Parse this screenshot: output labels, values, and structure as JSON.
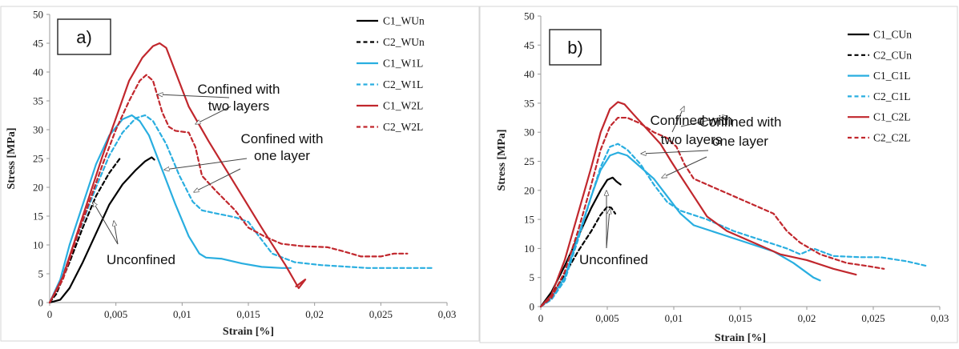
{
  "chart_data": [
    {
      "type": "line",
      "panel_label": "a)",
      "xlabel": "Strain [%]",
      "ylabel": "Stress [MPa]",
      "xlim": [
        0,
        0.03
      ],
      "ylim": [
        0,
        50
      ],
      "xticks": [
        "0",
        "0,005",
        "0,01",
        "0,015",
        "0,02",
        "0,025",
        "0,03"
      ],
      "yticks": [
        "0",
        "5",
        "10",
        "15",
        "20",
        "25",
        "30",
        "35",
        "40",
        "45",
        "50"
      ],
      "grid": false,
      "legend_position": "right",
      "series": [
        {
          "name": "C1_WUn",
          "color": "#000000",
          "dash": false,
          "points": [
            [
              0,
              0
            ],
            [
              0.0008,
              0.5
            ],
            [
              0.0015,
              2.5
            ],
            [
              0.0025,
              7
            ],
            [
              0.0035,
              12
            ],
            [
              0.0045,
              17
            ],
            [
              0.0055,
              20.5
            ],
            [
              0.0065,
              23
            ],
            [
              0.0072,
              24.5
            ],
            [
              0.0077,
              25.2
            ],
            [
              0.0079,
              24.8
            ]
          ]
        },
        {
          "name": "C2_WUn",
          "color": "#000000",
          "dash": true,
          "points": [
            [
              0,
              0
            ],
            [
              0.0005,
              1.5
            ],
            [
              0.0015,
              7
            ],
            [
              0.0025,
              13
            ],
            [
              0.0035,
              18.5
            ],
            [
              0.0045,
              22.5
            ],
            [
              0.0053,
              25
            ]
          ]
        },
        {
          "name": "C1_W1L",
          "color": "#29aee0",
          "dash": false,
          "points": [
            [
              0,
              0
            ],
            [
              0.0008,
              4
            ],
            [
              0.0015,
              10
            ],
            [
              0.0025,
              17
            ],
            [
              0.0035,
              24
            ],
            [
              0.0045,
              29
            ],
            [
              0.0055,
              31.8
            ],
            [
              0.0062,
              32.5
            ],
            [
              0.0068,
              31.5
            ],
            [
              0.0075,
              29
            ],
            [
              0.0085,
              23
            ],
            [
              0.0095,
              17
            ],
            [
              0.0105,
              11.5
            ],
            [
              0.0113,
              8.5
            ],
            [
              0.0118,
              7.8
            ],
            [
              0.013,
              7.6
            ],
            [
              0.0145,
              6.8
            ],
            [
              0.016,
              6.2
            ],
            [
              0.0175,
              6
            ],
            [
              0.0182,
              6
            ]
          ]
        },
        {
          "name": "C2_W1L",
          "color": "#29aee0",
          "dash": true,
          "points": [
            [
              0,
              0
            ],
            [
              0.0008,
              3.5
            ],
            [
              0.0015,
              8
            ],
            [
              0.0025,
              14
            ],
            [
              0.0035,
              20
            ],
            [
              0.0045,
              25.5
            ],
            [
              0.0055,
              29.5
            ],
            [
              0.0065,
              32
            ],
            [
              0.0072,
              32.5
            ],
            [
              0.0078,
              31.5
            ],
            [
              0.0088,
              27.5
            ],
            [
              0.0098,
              22
            ],
            [
              0.0108,
              17.5
            ],
            [
              0.0115,
              16
            ],
            [
              0.0125,
              15.5
            ],
            [
              0.014,
              14.8
            ],
            [
              0.015,
              14
            ],
            [
              0.0158,
              11.5
            ],
            [
              0.0168,
              8.5
            ],
            [
              0.0185,
              7
            ],
            [
              0.0205,
              6.5
            ],
            [
              0.024,
              6
            ],
            [
              0.029,
              6
            ]
          ]
        },
        {
          "name": "C1_W2L",
          "color": "#c1272d",
          "dash": false,
          "points": [
            [
              0,
              0
            ],
            [
              0.001,
              4.5
            ],
            [
              0.002,
              11.5
            ],
            [
              0.003,
              18.5
            ],
            [
              0.004,
              25.5
            ],
            [
              0.005,
              32
            ],
            [
              0.006,
              38.5
            ],
            [
              0.007,
              42.5
            ],
            [
              0.0078,
              44.5
            ],
            [
              0.0083,
              45
            ],
            [
              0.0088,
              44.2
            ],
            [
              0.0095,
              40
            ],
            [
              0.0105,
              34
            ],
            [
              0.012,
              28
            ],
            [
              0.014,
              20.5
            ],
            [
              0.016,
              13
            ],
            [
              0.0178,
              6.5
            ],
            [
              0.0188,
              2.5
            ],
            [
              0.0193,
              4
            ],
            [
              0.019,
              3.5
            ],
            [
              0.0186,
              2.8
            ]
          ]
        },
        {
          "name": "C2_W2L",
          "color": "#c1272d",
          "dash": true,
          "points": [
            [
              0,
              0
            ],
            [
              0.001,
              4
            ],
            [
              0.002,
              11
            ],
            [
              0.003,
              17.5
            ],
            [
              0.004,
              24
            ],
            [
              0.005,
              30
            ],
            [
              0.006,
              35
            ],
            [
              0.0068,
              38.5
            ],
            [
              0.0073,
              39.5
            ],
            [
              0.0078,
              38.5
            ],
            [
              0.0085,
              33
            ],
            [
              0.009,
              30.5
            ],
            [
              0.0095,
              29.8
            ],
            [
              0.0105,
              29.5
            ],
            [
              0.011,
              27
            ],
            [
              0.0115,
              22
            ],
            [
              0.0125,
              19.5
            ],
            [
              0.014,
              16
            ],
            [
              0.015,
              13
            ],
            [
              0.0162,
              11.5
            ],
            [
              0.0175,
              10.2
            ],
            [
              0.019,
              9.8
            ],
            [
              0.021,
              9.6
            ],
            [
              0.022,
              9
            ],
            [
              0.0235,
              8
            ],
            [
              0.025,
              8
            ],
            [
              0.026,
              8.5
            ],
            [
              0.027,
              8.5
            ]
          ]
        }
      ],
      "annotations": [
        {
          "lines": [
            "Confined with",
            "two layers"
          ]
        },
        {
          "lines": [
            "Confined with",
            "one layer"
          ]
        },
        {
          "lines": [
            "Unconfined"
          ]
        }
      ]
    },
    {
      "type": "line",
      "panel_label": "b)",
      "xlabel": "Strain [%]",
      "ylabel": "Stress [MPa]",
      "xlim": [
        0,
        0.03
      ],
      "ylim": [
        0,
        50
      ],
      "xticks": [
        "0",
        "0,005",
        "0,01",
        "0,015",
        "0,02",
        "0,025",
        "0,03"
      ],
      "yticks": [
        "0",
        "5",
        "10",
        "15",
        "20",
        "25",
        "30",
        "35",
        "40",
        "45",
        "50"
      ],
      "grid": false,
      "legend_position": "right",
      "series": [
        {
          "name": "C1_CUn",
          "color": "#000000",
          "dash": false,
          "points": [
            [
              0,
              0
            ],
            [
              0.0008,
              2.5
            ],
            [
              0.0018,
              7
            ],
            [
              0.0028,
              12
            ],
            [
              0.0038,
              17
            ],
            [
              0.0045,
              20
            ],
            [
              0.005,
              21.8
            ],
            [
              0.0054,
              22.2
            ],
            [
              0.0057,
              21.5
            ],
            [
              0.006,
              21
            ]
          ]
        },
        {
          "name": "C2_CUn",
          "color": "#000000",
          "dash": true,
          "points": [
            [
              0,
              0
            ],
            [
              0.0008,
              2
            ],
            [
              0.0018,
              5.5
            ],
            [
              0.0028,
              9.5
            ],
            [
              0.0038,
              13
            ],
            [
              0.0045,
              15.8
            ],
            [
              0.005,
              17.2
            ],
            [
              0.0053,
              17
            ],
            [
              0.0056,
              16
            ]
          ]
        },
        {
          "name": "C1_C1L",
          "color": "#29aee0",
          "dash": false,
          "points": [
            [
              0,
              0
            ],
            [
              0.0008,
              1.5
            ],
            [
              0.0018,
              5
            ],
            [
              0.0028,
              12
            ],
            [
              0.0038,
              19
            ],
            [
              0.0045,
              23.5
            ],
            [
              0.0052,
              26
            ],
            [
              0.0058,
              26.5
            ],
            [
              0.0065,
              26
            ],
            [
              0.0075,
              24
            ],
            [
              0.0085,
              22
            ],
            [
              0.0095,
              19
            ],
            [
              0.0105,
              16
            ],
            [
              0.0115,
              14
            ],
            [
              0.0135,
              12.5
            ],
            [
              0.0155,
              11
            ],
            [
              0.0175,
              9.5
            ],
            [
              0.019,
              7.5
            ],
            [
              0.0205,
              5
            ],
            [
              0.021,
              4.5
            ]
          ]
        },
        {
          "name": "C2_C1L",
          "color": "#29aee0",
          "dash": true,
          "points": [
            [
              0,
              0
            ],
            [
              0.0008,
              1.2
            ],
            [
              0.0018,
              4.5
            ],
            [
              0.0028,
              11.5
            ],
            [
              0.0038,
              19
            ],
            [
              0.0045,
              24
            ],
            [
              0.0052,
              27.5
            ],
            [
              0.0058,
              28
            ],
            [
              0.0065,
              27
            ],
            [
              0.0075,
              24.5
            ],
            [
              0.0085,
              21
            ],
            [
              0.0095,
              18
            ],
            [
              0.0105,
              16.5
            ],
            [
              0.0125,
              15
            ],
            [
              0.0145,
              13
            ],
            [
              0.0165,
              11.5
            ],
            [
              0.0185,
              10
            ],
            [
              0.0195,
              9
            ],
            [
              0.0205,
              10
            ],
            [
              0.022,
              8.7
            ],
            [
              0.024,
              8.5
            ],
            [
              0.0255,
              8.5
            ],
            [
              0.0275,
              7.8
            ],
            [
              0.029,
              7
            ]
          ]
        },
        {
          "name": "C1_C2L",
          "color": "#c1272d",
          "dash": false,
          "points": [
            [
              0,
              0
            ],
            [
              0.0008,
              2
            ],
            [
              0.0018,
              8
            ],
            [
              0.0028,
              16
            ],
            [
              0.0038,
              24
            ],
            [
              0.0045,
              30
            ],
            [
              0.0052,
              34
            ],
            [
              0.0058,
              35.2
            ],
            [
              0.0063,
              34.8
            ],
            [
              0.007,
              33
            ],
            [
              0.008,
              30.5
            ],
            [
              0.009,
              28
            ],
            [
              0.0098,
              25
            ],
            [
              0.0105,
              22.5
            ],
            [
              0.0115,
              19
            ],
            [
              0.0125,
              15.5
            ],
            [
              0.014,
              13
            ],
            [
              0.016,
              11
            ],
            [
              0.018,
              9
            ],
            [
              0.02,
              8
            ],
            [
              0.022,
              6.5
            ],
            [
              0.0237,
              5.5
            ]
          ]
        },
        {
          "name": "C2_C2L",
          "color": "#c1272d",
          "dash": true,
          "points": [
            [
              0,
              0
            ],
            [
              0.0008,
              1.5
            ],
            [
              0.0018,
              6
            ],
            [
              0.0028,
              13
            ],
            [
              0.0038,
              21
            ],
            [
              0.0045,
              27
            ],
            [
              0.0052,
              31
            ],
            [
              0.0058,
              32.5
            ],
            [
              0.0065,
              32.5
            ],
            [
              0.0075,
              31.5
            ],
            [
              0.0085,
              30
            ],
            [
              0.0095,
              29
            ],
            [
              0.0102,
              27.5
            ],
            [
              0.0108,
              24.5
            ],
            [
              0.0115,
              22
            ],
            [
              0.0125,
              21
            ],
            [
              0.014,
              19.5
            ],
            [
              0.016,
              17.5
            ],
            [
              0.0175,
              16
            ],
            [
              0.0185,
              13
            ],
            [
              0.0195,
              11
            ],
            [
              0.021,
              9
            ],
            [
              0.023,
              7.5
            ],
            [
              0.0245,
              7
            ],
            [
              0.0258,
              6.5
            ]
          ]
        }
      ],
      "annotations": [
        {
          "lines": [
            "Confined with",
            "two layers"
          ]
        },
        {
          "lines": [
            "Confined with",
            "one layer"
          ]
        },
        {
          "lines": [
            "Unconfined"
          ]
        }
      ]
    }
  ]
}
